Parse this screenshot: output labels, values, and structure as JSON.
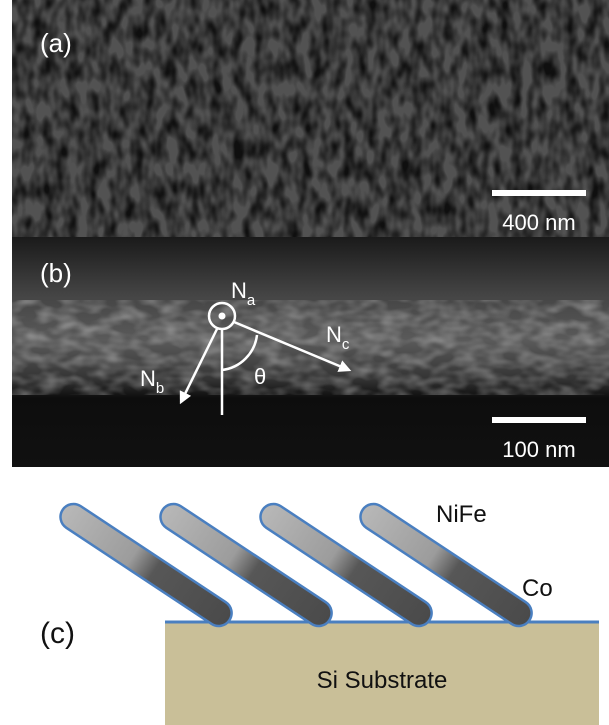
{
  "panel_a": {
    "label": "(a)",
    "scale_bar": "400 nm"
  },
  "panel_b": {
    "label": "(b)",
    "scale_bar": "100 nm",
    "vectors": {
      "na": {
        "symbol": "N",
        "subscript": "a"
      },
      "nb": {
        "symbol": "N",
        "subscript": "b"
      },
      "nc": {
        "symbol": "N",
        "subscript": "c"
      }
    },
    "angle": "θ"
  },
  "panel_c": {
    "label": "(c)",
    "top_layer": "NiFe",
    "bottom_layer": "Co",
    "substrate": "Si Substrate"
  }
}
